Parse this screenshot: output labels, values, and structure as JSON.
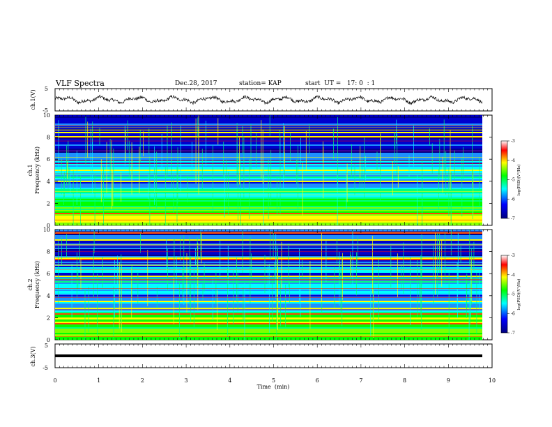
{
  "header": {
    "title": "VLF Spectra",
    "date": "Dec.28, 2017",
    "station": "station= KAP",
    "start_ut": "start  UT =   17: 0  : 1"
  },
  "chart_data": [
    {
      "type": "line",
      "panel": "ch1-waveform",
      "ylabel": "ch.1(V)",
      "ylim": [
        -5,
        5
      ],
      "yticks": [
        "5",
        "-5"
      ],
      "x_range_min": [
        0,
        9.8
      ],
      "note_series": "noisy oscillating signal around 0 V, amplitude ~1-2 V"
    },
    {
      "type": "heatmap",
      "panel": "ch1-spectrogram",
      "ylabel_line1": "ch.1",
      "ylabel_line2": "Frequency (kHz)",
      "ylim": [
        0,
        10
      ],
      "yticks": [
        "0",
        "2",
        "4",
        "6",
        "8",
        "10"
      ],
      "colorbar": {
        "label": "log(PSD)(V²/Hz)",
        "range": [
          -7,
          -3
        ],
        "ticks": [
          "-3",
          "-4",
          "-5",
          "-6",
          "-7"
        ]
      }
    },
    {
      "type": "heatmap",
      "panel": "ch2-spectrogram",
      "ylabel_line1": "ch.2",
      "ylabel_line2": "Frequency (kHz)",
      "ylim": [
        0,
        10
      ],
      "yticks": [
        "0",
        "2",
        "4",
        "6",
        "8",
        "10"
      ],
      "colorbar": {
        "label": "log(PSD)(V²/Hz)",
        "range": [
          -7,
          -3
        ],
        "ticks": [
          "-3",
          "-4",
          "-5",
          "-6",
          "-7"
        ]
      }
    },
    {
      "type": "line",
      "panel": "ch3-waveform",
      "ylabel": "ch.3(V)",
      "ylim": [
        -5,
        5
      ],
      "yticks": [
        "5",
        "-5"
      ],
      "constant_value": 0
    }
  ],
  "xaxis": {
    "label": "Time  (min)",
    "range": [
      0,
      10
    ],
    "ticks": [
      "0",
      "1",
      "2",
      "3",
      "4",
      "5",
      "6",
      "7",
      "8",
      "9",
      "10"
    ]
  },
  "colors": {
    "deep_blue": "#00008b",
    "blue": "#0000ff",
    "cyan": "#00ffff",
    "green": "#00ff00",
    "yellow": "#ffff00",
    "red": "#ff0000"
  }
}
